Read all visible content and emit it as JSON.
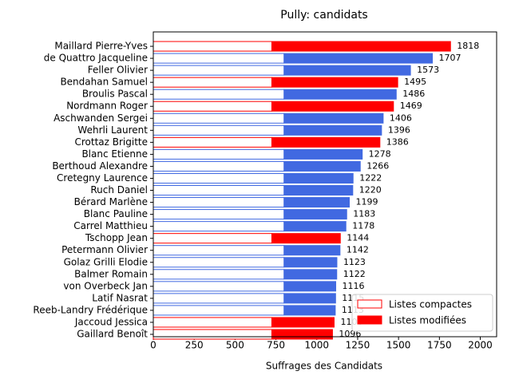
{
  "chart_data": {
    "type": "stacked_barh",
    "title": "Pully: candidats",
    "x_label": "Suffrages des Candidats",
    "categories": [
      "Maillard Pierre-Yves",
      "de Quattro Jacqueline",
      "Feller Olivier",
      "Bendahan Samuel",
      "Broulis Pascal",
      "Nordmann Roger",
      "Aschwanden Sergei",
      "Wehrli Laurent",
      "Crottaz Brigitte",
      "Blanc Etienne",
      "Berthoud Alexandre",
      "Cretegny Laurence",
      "Ruch Daniel",
      "Bérard Marlène",
      "Blanc Pauline",
      "Carrel Matthieu",
      "Tschopp Jean",
      "Petermann Olivier",
      "Golaz Grilli Elodie",
      "Balmer Romain",
      "von Overbeck Jan",
      "Latif Nasrat",
      "Reeb-Landry Frédérique",
      "Jaccoud Jessica",
      "Gaillard Benoît"
    ],
    "bar_colors": [
      "#ff0000",
      "#4169e1",
      "#4169e1",
      "#ff0000",
      "#4169e1",
      "#ff0000",
      "#4169e1",
      "#4169e1",
      "#ff0000",
      "#4169e1",
      "#4169e1",
      "#4169e1",
      "#4169e1",
      "#4169e1",
      "#4169e1",
      "#4169e1",
      "#ff0000",
      "#4169e1",
      "#4169e1",
      "#4169e1",
      "#4169e1",
      "#4169e1",
      "#4169e1",
      "#ff0000",
      "#ff0000"
    ],
    "series": [
      {
        "name": "Listes compactes",
        "fill": "#ffffff",
        "values": [
          725,
          800,
          800,
          725,
          800,
          725,
          800,
          800,
          725,
          800,
          800,
          800,
          800,
          800,
          800,
          800,
          725,
          800,
          800,
          800,
          800,
          800,
          800,
          725,
          725
        ]
      },
      {
        "name": "Listes modifiées",
        "values": [
          1093,
          907,
          773,
          770,
          686,
          744,
          606,
          596,
          661,
          478,
          466,
          422,
          420,
          399,
          383,
          378,
          419,
          342,
          323,
          322,
          316,
          315,
          313,
          381,
          371
        ]
      }
    ],
    "totals": [
      1818,
      1707,
      1573,
      1495,
      1486,
      1469,
      1406,
      1396,
      1386,
      1278,
      1266,
      1222,
      1220,
      1199,
      1183,
      1178,
      1144,
      1142,
      1123,
      1122,
      1116,
      1115,
      1113,
      1106,
      1096
    ],
    "xlim": [
      0,
      2100
    ],
    "xticks": [
      0,
      250,
      500,
      750,
      1000,
      1250,
      1500,
      1750,
      2000
    ],
    "legend": "lower right"
  }
}
